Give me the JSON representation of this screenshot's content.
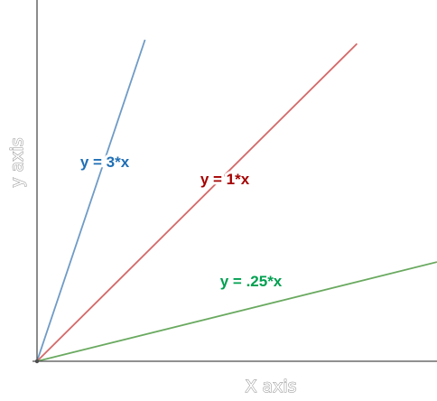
{
  "chart_data": {
    "type": "line",
    "xlabel": "X axis",
    "ylabel": "y axis",
    "series": [
      {
        "name": "y = 3*x",
        "slope": 3,
        "x": [
          0,
          0.27
        ],
        "y": [
          0,
          0.81
        ],
        "color": "#6f9bc6",
        "label_color": "#1f6fb5"
      },
      {
        "name": "y = 1*x",
        "slope": 1,
        "x": [
          0,
          0.8
        ],
        "y": [
          0,
          0.8
        ],
        "color": "#d46a6a",
        "label_color": "#a50000"
      },
      {
        "name": "y = .25*x",
        "slope": 0.25,
        "x": [
          0,
          1.0
        ],
        "y": [
          0,
          0.25
        ],
        "color": "#6aaa60",
        "label_color": "#00a050"
      }
    ],
    "xlim": [
      0,
      1
    ],
    "ylim": [
      0,
      0.91
    ],
    "grid": false,
    "legend": "none",
    "axis_color": "#4d4d4d"
  }
}
